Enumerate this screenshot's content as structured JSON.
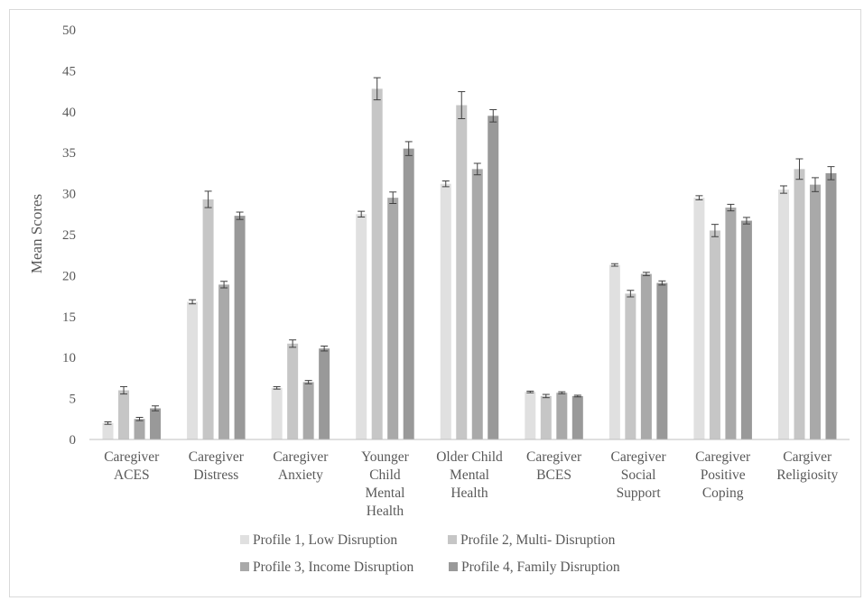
{
  "chart_data": {
    "type": "bar",
    "title": "",
    "xlabel": "",
    "ylabel": "Mean Scores",
    "ylim": [
      0,
      50
    ],
    "yticks": [
      0,
      5,
      10,
      15,
      20,
      25,
      30,
      35,
      40,
      45,
      50
    ],
    "grid": false,
    "legend_position": "bottom",
    "error_bars": true,
    "categories": [
      [
        "Caregiver",
        "ACES"
      ],
      [
        "Caregiver",
        "Distress"
      ],
      [
        "Caregiver",
        "Anxiety"
      ],
      [
        "Younger",
        "Child",
        "Mental",
        "Health"
      ],
      [
        "Older Child",
        "Mental",
        "Health"
      ],
      [
        "Caregiver",
        "BCES"
      ],
      [
        "Caregiver",
        "Social",
        "Support"
      ],
      [
        "Caregiver",
        "Positive",
        "Coping"
      ],
      [
        "Cargiver",
        "Religiosity"
      ]
    ],
    "series": [
      {
        "name": "Profile 1, Low Disruption",
        "color": "#e0e0e0",
        "values": [
          2.0,
          16.8,
          6.3,
          27.5,
          31.2,
          5.8,
          21.3,
          29.5,
          30.5
        ],
        "errors": [
          0.15,
          0.25,
          0.15,
          0.35,
          0.35,
          0.1,
          0.15,
          0.25,
          0.45
        ]
      },
      {
        "name": "Profile 2, Multi- Disruption",
        "color": "#c6c6c6",
        "values": [
          6.0,
          29.3,
          11.7,
          42.8,
          40.8,
          5.3,
          17.8,
          25.5,
          33.0
        ],
        "errors": [
          0.45,
          1.0,
          0.45,
          1.35,
          1.65,
          0.2,
          0.4,
          0.75,
          1.25
        ]
      },
      {
        "name": "Profile 3, Income Disruption",
        "color": "#a9a9a9",
        "values": [
          2.5,
          18.9,
          7.0,
          29.5,
          33.0,
          5.7,
          20.2,
          28.3,
          31.1
        ],
        "errors": [
          0.2,
          0.4,
          0.2,
          0.7,
          0.7,
          0.12,
          0.2,
          0.4,
          0.85
        ]
      },
      {
        "name": "Profile 4, Family Disruption",
        "color": "#999999",
        "values": [
          3.8,
          27.3,
          11.1,
          35.5,
          39.5,
          5.3,
          19.1,
          26.7,
          32.5
        ],
        "errors": [
          0.3,
          0.45,
          0.3,
          0.85,
          0.75,
          0.1,
          0.25,
          0.4,
          0.8
        ]
      }
    ]
  }
}
